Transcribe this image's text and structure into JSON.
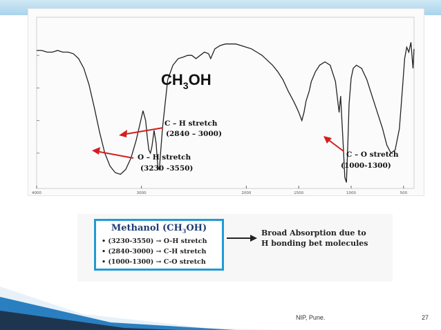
{
  "chart_data": {
    "type": "line",
    "title": "CH3OH",
    "title_main": "CH",
    "title_sub": "3",
    "title_end": "OH",
    "xlabel": "",
    "ylabel": "",
    "x_reversed": true,
    "xlim": [
      4000,
      400
    ],
    "ylim": [
      0,
      100
    ],
    "x_ticks": [
      "4000",
      "3000",
      "2000",
      "1500",
      "1000",
      "500"
    ],
    "grid": false,
    "series": [
      {
        "x": [
          4000,
          3950,
          3900,
          3850,
          3800,
          3750,
          3700,
          3650,
          3600,
          3550,
          3500,
          3450,
          3400,
          3350,
          3300,
          3250,
          3200,
          3150,
          3100,
          3050,
          3000,
          2985,
          2960,
          2945,
          2930,
          2915,
          2900,
          2880,
          2860,
          2845,
          2830,
          2800,
          2750,
          2700,
          2650,
          2600,
          2560,
          2520,
          2480,
          2440,
          2400,
          2360,
          2340,
          2300,
          2250,
          2200,
          2150,
          2100,
          2050,
          2000,
          1950,
          1900,
          1850,
          1800,
          1750,
          1700,
          1650,
          1600,
          1550,
          1520,
          1500,
          1470,
          1450,
          1430,
          1400,
          1380,
          1340,
          1300,
          1250,
          1200,
          1150,
          1115,
          1100,
          1080,
          1060,
          1045,
          1030,
          1020,
          1000,
          980,
          950,
          900,
          850,
          800,
          750,
          700,
          660,
          620,
          580,
          540,
          510,
          490,
          470,
          450,
          430,
          410,
          400
        ],
        "y": [
          83,
          83,
          82,
          82,
          83,
          82,
          82,
          81,
          78,
          72,
          62,
          48,
          33,
          20,
          12,
          8,
          7,
          10,
          17,
          28,
          42,
          46,
          40,
          30,
          22,
          20,
          24,
          34,
          26,
          12,
          10,
          35,
          65,
          74,
          78,
          79,
          80,
          80,
          78,
          80,
          82,
          81,
          78,
          84,
          86,
          87,
          87,
          87,
          86,
          85,
          84,
          82,
          80,
          77,
          74,
          70,
          65,
          58,
          52,
          48,
          45,
          40,
          45,
          52,
          58,
          64,
          70,
          74,
          76,
          74,
          64,
          45,
          55,
          30,
          5,
          2,
          28,
          50,
          66,
          72,
          74,
          72,
          65,
          55,
          45,
          35,
          25,
          20,
          22,
          35,
          60,
          78,
          85,
          82,
          88,
          72,
          84
        ]
      }
    ],
    "annotations": [
      {
        "label": "C – H stretch",
        "range": "(2840 – 3000)"
      },
      {
        "label": "O – H stretch",
        "range": "(3230 -3550)"
      },
      {
        "label": "C – O stretch",
        "range": "(1000-1300)"
      }
    ]
  },
  "summary": {
    "title": "Methanol (CH",
    "title_sub": "3",
    "title_end": "OH)",
    "lines": [
      "• (3230-3550)  → O-H stretch",
      "• (2840-3000) → C-H stretch",
      "• (1000-1300)  → C-O stretch"
    ],
    "note_line1": "Broad Absorption due to",
    "note_line2": "H bonding bet molecules"
  },
  "footer": {
    "text": "NIP, Pune.",
    "page": "27"
  },
  "colors": {
    "accent": "#1e9bd6",
    "annotation_arrow": "#d21f1f",
    "spectrum_line": "#222222",
    "deco_blue": "#2a7fc0",
    "deco_dark": "#1e3550"
  }
}
